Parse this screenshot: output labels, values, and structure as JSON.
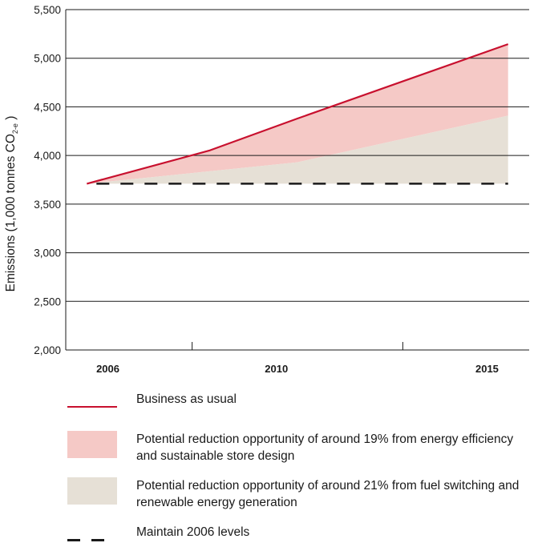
{
  "chart_data": {
    "type": "area",
    "title": "",
    "xlabel": "",
    "ylabel": "Emissions (1,000 tonnes CO",
    "ylabel_sub": "2-e",
    "ylabel_close": " )",
    "ylim": [
      2000,
      5500
    ],
    "yticks": [
      2000,
      2500,
      3000,
      3500,
      4000,
      4500,
      5000,
      5500
    ],
    "ytick_labels": [
      "2,000",
      "2,500",
      "3,000",
      "3,500",
      "4,000",
      "4,500",
      "5,000",
      "5,500"
    ],
    "xlim": [
      2005,
      2016
    ],
    "xtick_labels": [
      {
        "x": 2006,
        "label": "2006"
      },
      {
        "x": 2010,
        "label": "2010"
      },
      {
        "x": 2015,
        "label": "2015"
      }
    ],
    "x_dividers": [
      2008,
      2013
    ],
    "grid": true,
    "legend_position": "bottom",
    "series": [
      {
        "name": "Business as usual",
        "kind": "line",
        "color": "#c8102e",
        "points": [
          [
            2005.5,
            3710
          ],
          [
            2008.4,
            4050
          ],
          [
            2010.5,
            4380
          ],
          [
            2015.5,
            5145
          ]
        ]
      },
      {
        "name": "Potential reduction opportunity of around 19% from energy efficiency and sustainable store design",
        "kind": "band",
        "color": "#f5c9c6",
        "upper": [
          [
            2005.5,
            3710
          ],
          [
            2008.4,
            4050
          ],
          [
            2010.5,
            4380
          ],
          [
            2015.5,
            5145
          ]
        ],
        "lower": [
          [
            2005.5,
            3710
          ],
          [
            2007.0,
            3775
          ],
          [
            2010.5,
            3930
          ],
          [
            2015.5,
            4410
          ]
        ]
      },
      {
        "name": "Potential reduction opportunity of around 21% from fuel switching and renewable energy generation",
        "kind": "band",
        "color": "#e6e0d6",
        "upper": [
          [
            2005.5,
            3710
          ],
          [
            2007.0,
            3775
          ],
          [
            2010.5,
            3930
          ],
          [
            2015.5,
            4410
          ]
        ],
        "lower": [
          [
            2005.5,
            3710
          ],
          [
            2015.5,
            3710
          ]
        ]
      },
      {
        "name": "Maintain 2006 levels",
        "kind": "dashed",
        "color": "#1a1a1a",
        "points": [
          [
            2005.5,
            3710
          ],
          [
            2015.5,
            3710
          ]
        ]
      }
    ]
  },
  "legend": {
    "items": [
      {
        "label": "Business as usual",
        "swatch": "line",
        "color": "#c8102e"
      },
      {
        "label": "Potential reduction opportunity of around 19% from energy efficiency and sustainable store design",
        "swatch": "box",
        "color": "#f5c9c6"
      },
      {
        "label": "Potential reduction opportunity of around 21% from fuel switching and renewable energy generation",
        "swatch": "box",
        "color": "#e6e0d6"
      },
      {
        "label": "Maintain 2006 levels",
        "swatch": "dashed",
        "color": "#1a1a1a"
      }
    ]
  }
}
